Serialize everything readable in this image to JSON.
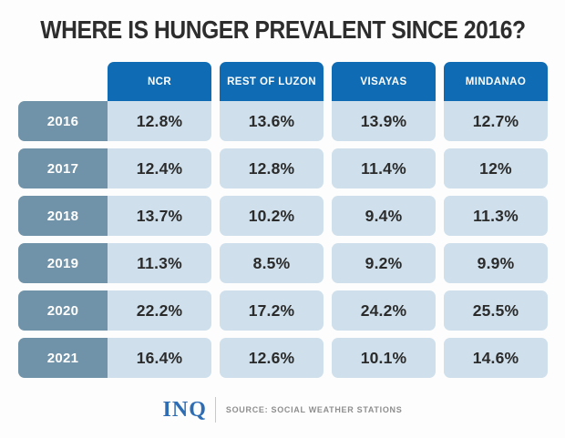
{
  "title": "WHERE IS HUNGER PREVALENT SINCE 2016?",
  "table": {
    "columns": [
      "NCR",
      "REST OF LUZON",
      "VISAYAS",
      "MINDANAO"
    ],
    "rows": [
      {
        "year": "2016",
        "values": [
          "12.8%",
          "13.6%",
          "13.9%",
          "12.7%"
        ]
      },
      {
        "year": "2017",
        "values": [
          "12.4%",
          "12.8%",
          "11.4%",
          "12%"
        ]
      },
      {
        "year": "2018",
        "values": [
          "13.7%",
          "10.2%",
          "9.4%",
          "11.3%"
        ]
      },
      {
        "year": "2019",
        "values": [
          "11.3%",
          "8.5%",
          "9.2%",
          "9.9%"
        ]
      },
      {
        "year": "2020",
        "values": [
          "22.2%",
          "17.2%",
          "24.2%",
          "25.5%"
        ]
      },
      {
        "year": "2021",
        "values": [
          "16.4%",
          "12.6%",
          "10.1%",
          "14.6%"
        ]
      }
    ]
  },
  "footer": {
    "logo": "INQ",
    "source": "SOURCE: SOCIAL WEATHER STATIONS"
  },
  "colors": {
    "header_blue": "#0f6cb4",
    "year_steel_blue": "#7093a9",
    "cell_light_blue": "#cfe0ec",
    "title_text": "#2d2d2d",
    "value_text": "#2b2b2b",
    "logo_blue": "#2e6db4",
    "source_gray": "#8e8e8e"
  },
  "chart_data": {
    "type": "table",
    "title": "WHERE IS HUNGER PREVALENT SINCE 2016?",
    "columns": [
      "NCR",
      "REST OF LUZON",
      "VISAYAS",
      "MINDANAO"
    ],
    "row_key": "year",
    "unit": "%",
    "series": [
      {
        "name": "2016",
        "values": [
          12.8,
          13.6,
          13.9,
          12.7
        ]
      },
      {
        "name": "2017",
        "values": [
          12.4,
          12.8,
          11.4,
          12.0
        ]
      },
      {
        "name": "2018",
        "values": [
          13.7,
          10.2,
          9.4,
          11.3
        ]
      },
      {
        "name": "2019",
        "values": [
          11.3,
          8.5,
          9.2,
          9.9
        ]
      },
      {
        "name": "2020",
        "values": [
          22.2,
          17.2,
          24.2,
          25.5
        ]
      },
      {
        "name": "2021",
        "values": [
          16.4,
          12.6,
          10.1,
          14.6
        ]
      }
    ],
    "source": "SOCIAL WEATHER STATIONS",
    "legend_position": "none",
    "grid": false
  }
}
